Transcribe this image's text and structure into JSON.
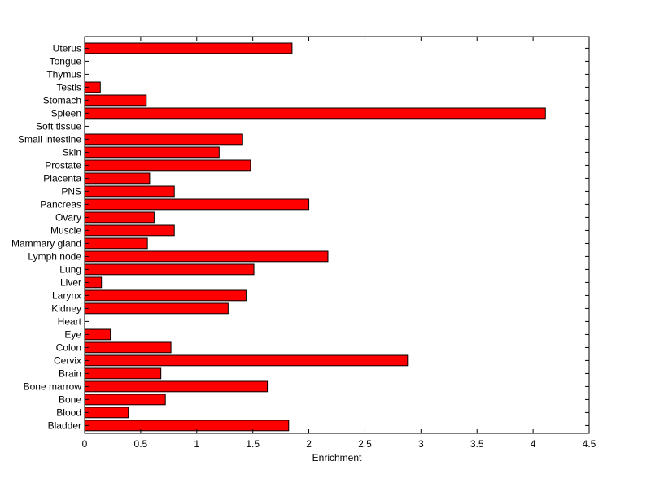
{
  "chart_data": {
    "type": "bar",
    "orientation": "horizontal",
    "categories": [
      "Uterus",
      "Tongue",
      "Thymus",
      "Testis",
      "Stomach",
      "Spleen",
      "Soft tissue",
      "Small intestine",
      "Skin",
      "Prostate",
      "Placenta",
      "PNS",
      "Pancreas",
      "Ovary",
      "Muscle",
      "Mammary gland",
      "Lymph node",
      "Lung",
      "Liver",
      "Larynx",
      "Kidney",
      "Heart",
      "Eye",
      "Colon",
      "Cervix",
      "Brain",
      "Bone marrow",
      "Bone",
      "Blood",
      "Bladder"
    ],
    "values": [
      1.85,
      0,
      0,
      0.14,
      0.55,
      4.11,
      0,
      1.41,
      1.2,
      1.48,
      0.58,
      0.8,
      2.0,
      0.62,
      0.8,
      0.56,
      2.17,
      1.51,
      0.15,
      1.44,
      1.28,
      0,
      0.23,
      0.77,
      2.88,
      0.68,
      1.63,
      0.72,
      0.39,
      1.82
    ],
    "title": "",
    "xlabel": "Enrichment",
    "ylabel": "",
    "xlim": [
      0,
      4.5
    ],
    "x_ticks": [
      "0",
      "0.5",
      "1",
      "1.5",
      "2",
      "2.5",
      "3",
      "3.5",
      "4",
      "4.5"
    ],
    "grid": false,
    "bar_color": "#ff0000",
    "edge_color": "#000000"
  }
}
